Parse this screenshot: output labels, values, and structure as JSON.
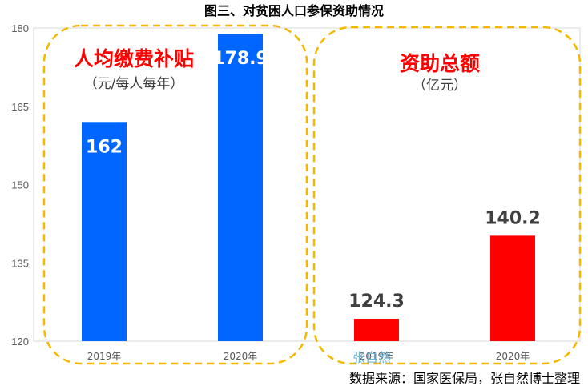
{
  "chart_data": {
    "type": "bar",
    "title": "图三、对贫困人口参保资助情况",
    "categories": [
      "2019年",
      "2020年",
      "2019年",
      "2020年"
    ],
    "ylim": [
      120,
      180
    ],
    "yticks": [
      120,
      135,
      150,
      165,
      180
    ],
    "grid": false,
    "groups": [
      {
        "title": "人均缴费补贴",
        "unit": "（元/每人每年）",
        "color": "#0066ff",
        "categories": [
          "2019年",
          "2020年"
        ],
        "values": [
          162,
          178.9
        ],
        "labels": [
          "162",
          "178.9"
        ],
        "label_position": "inside"
      },
      {
        "title": "资助总额",
        "unit": "（亿元）",
        "color": "#ff0000",
        "categories": [
          "2019年",
          "2020年"
        ],
        "values": [
          124.3,
          140.2
        ],
        "labels": [
          "124.3",
          "140.2"
        ],
        "label_position": "above"
      }
    ],
    "watermark": "张自然",
    "source": "数据来源：国家医保局，张自然博士整理"
  }
}
